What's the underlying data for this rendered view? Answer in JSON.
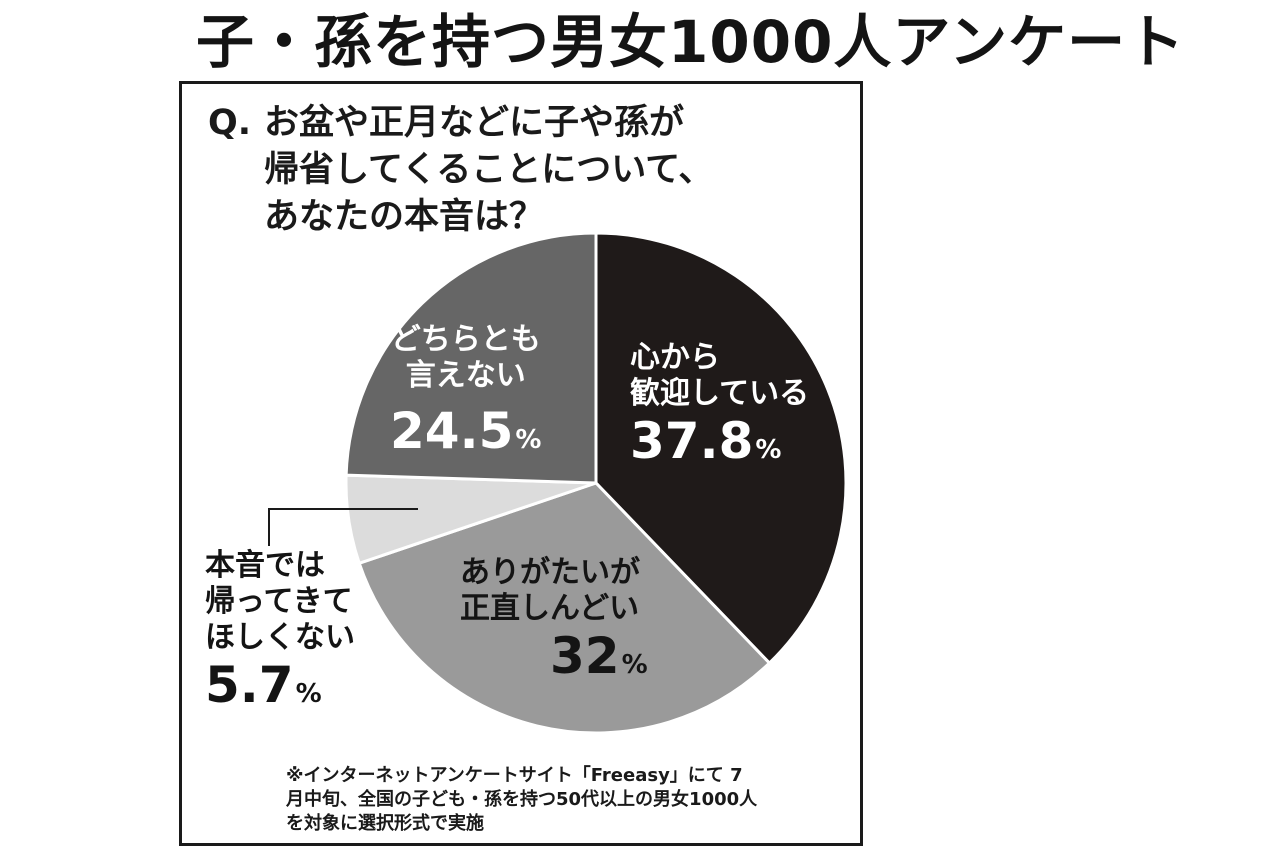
{
  "header": {
    "title": "子・孫を持つ男女1000人アンケート"
  },
  "question": {
    "mark": "Q.",
    "lines": [
      "お盆や正月などに子や孫が",
      "帰省してくることについて、",
      "あなたの本音は？"
    ]
  },
  "chart_data": {
    "type": "pie",
    "unit": "%",
    "slices": [
      {
        "label_lines": [
          "心から",
          "歓迎している"
        ],
        "value": 37.8,
        "value_text": "37.8",
        "color": "#1f1a19",
        "text_color": "#ffffff"
      },
      {
        "label_lines": [
          "ありがたいが",
          "正直しんどい"
        ],
        "value": 32,
        "value_text": "32",
        "color": "#9a9a9a",
        "text_color": "#141414"
      },
      {
        "label_lines": [
          "本音では",
          "帰ってきて",
          "ほしくない"
        ],
        "value": 5.7,
        "value_text": "5.7",
        "color": "#dcdcdc",
        "text_color": "#141414"
      },
      {
        "label_lines": [
          "どちらとも",
          "言えない"
        ],
        "value": 24.5,
        "value_text": "24.5",
        "color": "#666666",
        "text_color": "#ffffff"
      }
    ]
  },
  "footnote": {
    "lines": [
      "※インターネットアンケートサイト「Freeasy」にて 7",
      "月中旬、全国の子ども・孫を持つ50代以上の男女1000人",
      "を対象に選択形式で実施"
    ]
  }
}
